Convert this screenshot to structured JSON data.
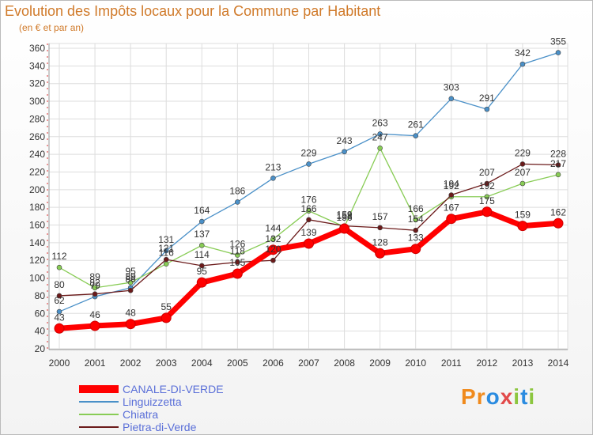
{
  "title": "Evolution des Impôts locaux pour la Commune par Habitant",
  "subtitle": "(en € et par an)",
  "logo_text": "Proxiti",
  "chart_data": {
    "type": "line",
    "x": [
      2000,
      2001,
      2002,
      2003,
      2004,
      2005,
      2006,
      2007,
      2008,
      2009,
      2010,
      2011,
      2012,
      2013,
      2014
    ],
    "ylim": [
      20,
      360
    ],
    "yticks": [
      20,
      40,
      60,
      80,
      100,
      120,
      140,
      160,
      180,
      200,
      220,
      240,
      260,
      280,
      300,
      320,
      340,
      360
    ],
    "grid": true,
    "legend_position": "bottom-left",
    "series": [
      {
        "name": "CANALE-DI-VERDE",
        "color": "#ff0000",
        "values": [
          43,
          46,
          48,
          55,
          95,
          105,
          132,
          139,
          156,
          128,
          133,
          167,
          175,
          159,
          162
        ]
      },
      {
        "name": "Linguizzetta",
        "color": "#4a90c8",
        "values": [
          62,
          79,
          89,
          131,
          164,
          186,
          213,
          229,
          243,
          263,
          261,
          303,
          291,
          342,
          355
        ]
      },
      {
        "name": "Chiatra",
        "color": "#88cc55",
        "values": [
          112,
          89,
          95,
          116,
          137,
          126,
          144,
          176,
          158,
          247,
          166,
          192,
          192,
          207,
          217
        ]
      },
      {
        "name": "Pietra-di-Verde",
        "color": "#6b1a1a",
        "values": [
          80,
          82,
          86,
          121,
          114,
          118,
          120,
          166,
          159,
          157,
          154,
          194,
          207,
          229,
          228
        ]
      }
    ],
    "data_labels": [
      [
        43,
        46,
        48,
        55,
        95,
        105,
        132,
        139,
        156,
        128,
        133,
        167,
        175,
        159,
        162
      ],
      [
        62,
        79,
        89,
        131,
        164,
        186,
        213,
        229,
        243,
        263,
        261,
        303,
        291,
        342,
        355
      ],
      [
        112,
        89,
        95,
        116,
        137,
        126,
        144,
        176,
        158,
        247,
        166,
        192,
        192,
        207,
        217
      ],
      [
        80,
        82,
        86,
        121,
        114,
        118,
        120,
        166,
        159,
        157,
        154,
        194,
        207,
        229,
        228
      ]
    ]
  }
}
